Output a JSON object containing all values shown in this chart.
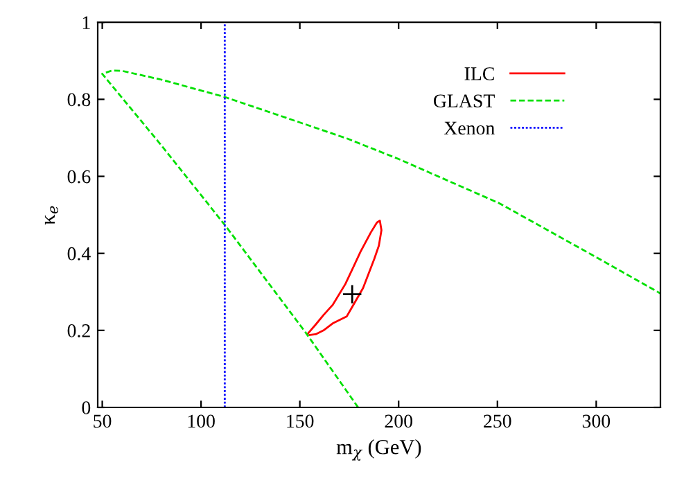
{
  "chart_data": {
    "type": "line",
    "xlabel": "m$_{χ}$ (GeV)",
    "ylabel": "κ$_{e}$",
    "xlim": [
      47.7,
      332.5
    ],
    "ylim": [
      0,
      1
    ],
    "xticks": [
      50,
      100,
      150,
      200,
      250,
      300
    ],
    "yticks": [
      0,
      0.2,
      0.4,
      0.6,
      0.8,
      1
    ],
    "grid": false,
    "legend": "top right",
    "marker": "none",
    "series": [
      {
        "name": "ILC",
        "color": "#ff0000",
        "line_style": "solid",
        "x": [
          153.8,
          158,
          162,
          166.6,
          173,
          180.7,
          186,
          189,
          190.5,
          191.3,
          190,
          187.7,
          182,
          173.7,
          166.6,
          162,
          158,
          155
        ],
        "values": [
          0.19,
          0.215,
          0.24,
          0.266,
          0.32,
          0.404,
          0.455,
          0.48,
          0.485,
          0.46,
          0.42,
          0.386,
          0.31,
          0.236,
          0.218,
          0.2,
          0.19,
          0.188
        ]
      },
      {
        "name": "GLAST",
        "color": "#00e000",
        "line_style": "dashed",
        "x": [
          179.5,
          153,
          112,
          80,
          50,
          55,
          60,
          80,
          112,
          150,
          174,
          200,
          251,
          300,
          332.5
        ],
        "values": [
          0.0,
          0.194,
          0.474,
          0.68,
          0.866,
          0.875,
          0.874,
          0.851,
          0.806,
          0.74,
          0.698,
          0.645,
          0.53,
          0.39,
          0.296
        ]
      },
      {
        "name": "Xenon",
        "color": "#0000ff",
        "line_style": "dotted",
        "x": [
          112,
          112
        ],
        "values": [
          0,
          1
        ]
      },
      {
        "type": "scatter",
        "marker": "cross",
        "color": "#000000",
        "x": [
          176.5
        ],
        "values": [
          0.294
        ]
      }
    ]
  }
}
